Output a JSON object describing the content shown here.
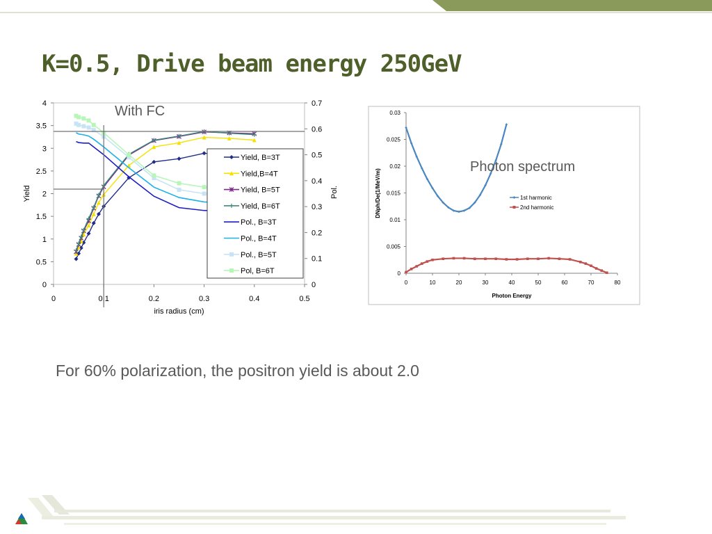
{
  "slide": {
    "title": "K=0.5, Drive beam energy 250GeV",
    "caption": "For 60% polarization, the positron yield is about 2.0",
    "accent_color": "#8a9a5b",
    "title_color": "#4e5f2a"
  },
  "chart_data": [
    {
      "type": "line",
      "annotation": "With FC",
      "xlabel": "iris radius (cm)",
      "ylabel": "Yield",
      "y2label": "Pol.",
      "xlim": [
        0,
        0.5
      ],
      "ylim": [
        0,
        4
      ],
      "y2lim": [
        0,
        0.7
      ],
      "xticks": [
        "0",
        "0.1",
        "0.2",
        "0.3",
        "0.4",
        "0.5"
      ],
      "yticks": [
        "0",
        "0.5",
        "1",
        "1.5",
        "2",
        "2.5",
        "3",
        "3.5",
        "4"
      ],
      "y2ticks": [
        "0",
        "0.1",
        "0.2",
        "0.3",
        "0.4",
        "0.5",
        "0.6",
        "0.7"
      ],
      "legend_position": "right",
      "reference_lines": {
        "x": 0.1,
        "yield": 2.1,
        "pol": 0.59
      },
      "series": [
        {
          "name": "Yield, B=3T",
          "axis": "left",
          "color": "#1f2d86",
          "marker": "diamond",
          "x": [
            0.045,
            0.05,
            0.055,
            0.06,
            0.07,
            0.08,
            0.09,
            0.1,
            0.15,
            0.2,
            0.25,
            0.3,
            0.35,
            0.4
          ],
          "y": [
            0.56,
            0.68,
            0.8,
            0.92,
            1.12,
            1.35,
            1.55,
            1.72,
            2.35,
            2.7,
            2.77,
            2.89,
            2.85,
            2.83
          ]
        },
        {
          "name": "Yield,B=4T",
          "axis": "left",
          "color": "#f5e100",
          "marker": "triangle",
          "x": [
            0.045,
            0.05,
            0.055,
            0.06,
            0.07,
            0.08,
            0.09,
            0.1,
            0.15,
            0.2,
            0.25,
            0.3,
            0.35,
            0.4
          ],
          "y": [
            0.68,
            0.82,
            0.95,
            1.1,
            1.3,
            1.55,
            1.8,
            1.98,
            2.62,
            3.03,
            3.12,
            3.24,
            3.22,
            3.18
          ]
        },
        {
          "name": "Yield, B=5T",
          "axis": "left",
          "color": "#7a2a86",
          "marker": "star",
          "x": [
            0.045,
            0.05,
            0.055,
            0.06,
            0.07,
            0.08,
            0.09,
            0.1,
            0.15,
            0.2,
            0.25,
            0.3,
            0.35,
            0.4
          ],
          "y": [
            0.72,
            0.88,
            1.02,
            1.18,
            1.4,
            1.68,
            1.95,
            2.15,
            2.85,
            3.17,
            3.26,
            3.36,
            3.34,
            3.32
          ]
        },
        {
          "name": "Yield, B=6T",
          "axis": "left",
          "color": "#3d8a7a",
          "marker": "plus",
          "x": [
            0.045,
            0.05,
            0.055,
            0.06,
            0.07,
            0.08,
            0.09,
            0.1,
            0.15,
            0.2,
            0.25,
            0.3,
            0.35,
            0.4
          ],
          "y": [
            0.75,
            0.9,
            1.05,
            1.2,
            1.45,
            1.7,
            1.97,
            2.18,
            2.87,
            3.18,
            3.27,
            3.37,
            3.33,
            3.3
          ]
        },
        {
          "name": "Pol., B=3T",
          "axis": "right",
          "color": "#1c1cc4",
          "marker": "none",
          "x": [
            0.045,
            0.05,
            0.06,
            0.07,
            0.08,
            0.1,
            0.15,
            0.2,
            0.25,
            0.3,
            0.35,
            0.4
          ],
          "y": [
            0.551,
            0.547,
            0.545,
            0.545,
            0.53,
            0.5,
            0.415,
            0.34,
            0.296,
            0.285,
            0.283,
            0.282
          ]
        },
        {
          "name": "Pol., B=4T",
          "axis": "right",
          "color": "#1ab0e8",
          "marker": "none",
          "x": [
            0.045,
            0.05,
            0.06,
            0.07,
            0.08,
            0.1,
            0.15,
            0.2,
            0.25,
            0.3,
            0.35,
            0.4
          ],
          "y": [
            0.585,
            0.58,
            0.577,
            0.572,
            0.56,
            0.53,
            0.45,
            0.375,
            0.335,
            0.318,
            0.315,
            0.315
          ]
        },
        {
          "name": "Pol., B=5T",
          "axis": "right",
          "color": "#c6e4f5",
          "marker": "square",
          "x": [
            0.045,
            0.05,
            0.06,
            0.07,
            0.08,
            0.1,
            0.15,
            0.2,
            0.25,
            0.3,
            0.35,
            0.4
          ],
          "y": [
            0.62,
            0.615,
            0.61,
            0.605,
            0.595,
            0.57,
            0.49,
            0.41,
            0.365,
            0.35,
            0.345,
            0.345
          ]
        },
        {
          "name": "Pol, B=6T",
          "axis": "right",
          "color": "#b8f5b8",
          "marker": "square",
          "x": [
            0.045,
            0.05,
            0.06,
            0.07,
            0.08,
            0.1,
            0.15,
            0.2,
            0.25,
            0.3,
            0.35,
            0.4
          ],
          "y": [
            0.65,
            0.645,
            0.64,
            0.632,
            0.615,
            0.585,
            0.5,
            0.42,
            0.39,
            0.375,
            0.372,
            0.372
          ]
        }
      ]
    },
    {
      "type": "line",
      "annotation": "Photon spectrum",
      "xlabel": "Photon Energy",
      "ylabel": "DNph/De(1/MeV/m)",
      "xlim": [
        0,
        80
      ],
      "ylim": [
        0,
        0.03
      ],
      "xticks": [
        "0",
        "10",
        "20",
        "30",
        "40",
        "50",
        "60",
        "70",
        "80"
      ],
      "yticks": [
        "0",
        "0.005",
        "0.01",
        "0.015",
        "0.02",
        "0.025",
        "0.03"
      ],
      "legend_position": "right",
      "series": [
        {
          "name": "1st harmonic",
          "color": "#4a86c0",
          "marker": "diamond",
          "x": [
            0,
            2,
            4,
            6,
            8,
            10,
            12,
            14,
            16,
            18,
            20,
            22,
            24,
            26,
            28,
            30,
            32,
            34,
            36,
            38
          ],
          "y": [
            0.0272,
            0.0243,
            0.0218,
            0.0196,
            0.0176,
            0.0159,
            0.0144,
            0.0132,
            0.0123,
            0.0117,
            0.0115,
            0.0117,
            0.0122,
            0.0132,
            0.0146,
            0.0164,
            0.0186,
            0.0211,
            0.0241,
            0.0278
          ]
        },
        {
          "name": "2nd harmonic",
          "color": "#c0504d",
          "marker": "square",
          "x": [
            0,
            2,
            4,
            6,
            8,
            10,
            14,
            18,
            22,
            26,
            30,
            34,
            38,
            42,
            46,
            50,
            54,
            58,
            62,
            66,
            68,
            70,
            72,
            74,
            76
          ],
          "y": [
            0.0002,
            0.0008,
            0.0013,
            0.0018,
            0.0022,
            0.0025,
            0.0027,
            0.0028,
            0.0028,
            0.0027,
            0.0027,
            0.0027,
            0.0026,
            0.0026,
            0.0027,
            0.0027,
            0.0028,
            0.0027,
            0.0026,
            0.0021,
            0.0018,
            0.0014,
            0.0009,
            0.0005,
            0.0001
          ]
        }
      ]
    }
  ]
}
